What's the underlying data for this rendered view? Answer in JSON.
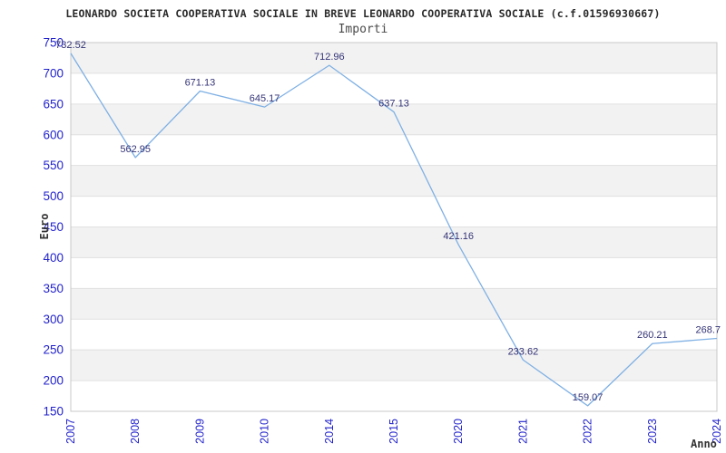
{
  "page": {
    "title": "LEONARDO SOCIETA COOPERATIVA SOCIALE IN BREVE LEONARDO COOPERATIVA SOCIALE (c.f.01596930667)",
    "subtitle": "Importi"
  },
  "chart_data": {
    "type": "line",
    "title": "Importi",
    "categories": [
      "2007",
      "2008",
      "2009",
      "2010",
      "2014",
      "2015",
      "2020",
      "2021",
      "2022",
      "2023",
      "2024"
    ],
    "values": [
      732.52,
      562.95,
      671.13,
      645.17,
      712.96,
      637.13,
      421.16,
      233.62,
      159.07,
      260.21,
      268.7
    ],
    "xlabel": "Anno",
    "ylabel": "Euro",
    "ylim": [
      150,
      750
    ],
    "ytick_step": 50,
    "grid": true,
    "legend": false,
    "background_bands": "alternating-gray",
    "markers": false
  },
  "colors": {
    "line": "#7fb0e4",
    "tick_label": "#2222cc",
    "data_label": "#333377",
    "band": "#f2f2f2",
    "grid": "#e0e0e0",
    "border": "#c8c8c8",
    "title": "#2a2a2a",
    "subtitle": "#4a4a4a",
    "axis_title": "#333333",
    "background": "#ffffff"
  }
}
